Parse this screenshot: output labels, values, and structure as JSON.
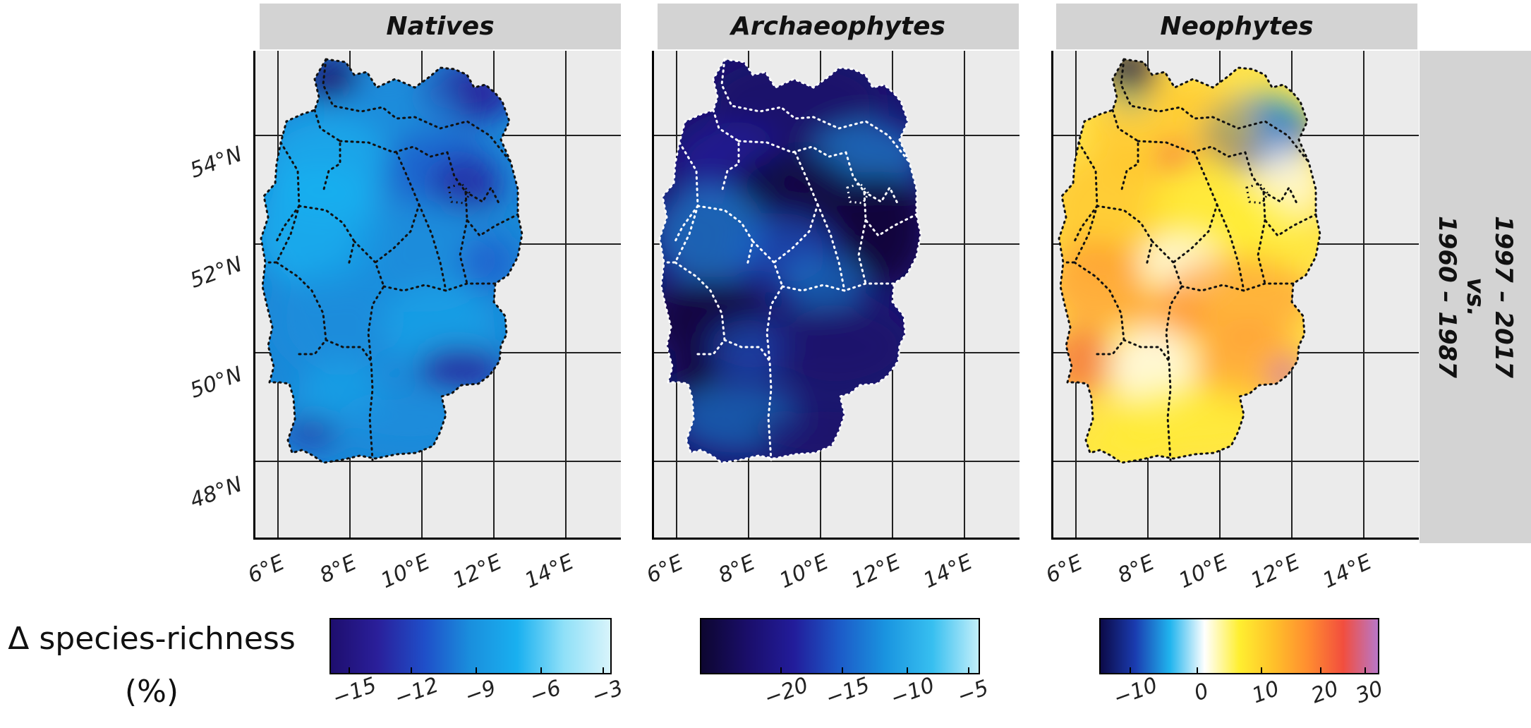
{
  "panels": [
    {
      "title": "Natives",
      "legend_ticks": [
        "−15",
        "−12",
        "−9",
        "−6",
        "−3"
      ],
      "colors": [
        "#1e0e6e",
        "#2a1f9a",
        "#1f4ec8",
        "#1a8fdd",
        "#19b0f0",
        "#8fe0f8",
        "#d8f4fb"
      ],
      "tone": "natives"
    },
    {
      "title": "Archaeophytes",
      "legend_ticks": [
        "−20",
        "−15",
        "−10",
        "−5"
      ],
      "colors": [
        "#0d0630",
        "#1a0e6a",
        "#221c9a",
        "#1c5bc8",
        "#1a95e0",
        "#37bff0",
        "#c2effa"
      ],
      "tone": "archaeophytes"
    },
    {
      "title": "Neophytes",
      "legend_ticks": [
        "−10",
        "0",
        "10",
        "20",
        "30"
      ],
      "colors": [
        "#0c0a48",
        "#1a3cb0",
        "#20b4ee",
        "#ffffff",
        "#ffef30",
        "#ffc02a",
        "#ff8c30",
        "#f24e3e",
        "#b877c8"
      ],
      "tone": "neophytes"
    }
  ],
  "row_label_line1": "1997 – 2017",
  "row_label_line2": "vs.",
  "row_label_line3": "1960 – 1987",
  "lat_labels": [
    "54°N",
    "52°N",
    "50°N",
    "48°N"
  ],
  "lon_labels": [
    "6°E",
    "8°E",
    "10°E",
    "12°E",
    "14°E"
  ],
  "legend_title_line1": "Δ species-richness",
  "legend_title_line2": "(%)"
}
